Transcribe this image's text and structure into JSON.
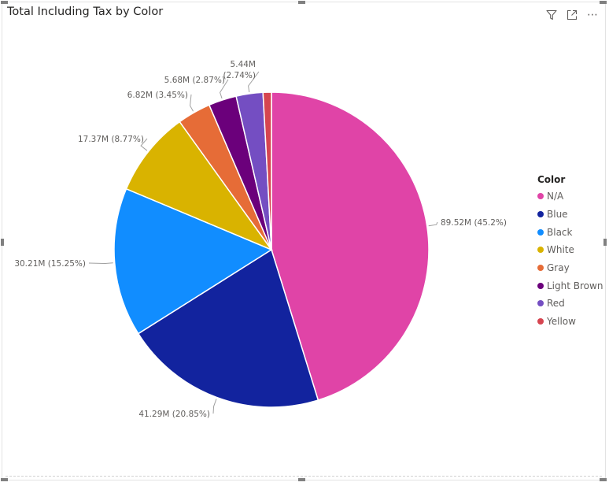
{
  "visual": {
    "title": "Total Including Tax by Color",
    "toolbar": {
      "filter_icon": "filter-icon",
      "focus_icon": "focus-mode-icon",
      "more_icon": "more-options-icon",
      "more_glyph": "⋯"
    }
  },
  "chart_data": {
    "type": "pie",
    "title": "Total Including Tax by Color",
    "legend_title": "Color",
    "legend_position": "right",
    "slices": [
      {
        "label": "N/A",
        "value": 89.52,
        "data_label": "89.52M (45.2%)",
        "color": "#E044A7"
      },
      {
        "label": "Blue",
        "value": 41.29,
        "data_label": "41.29M (20.85%)",
        "color": "#12239E"
      },
      {
        "label": "Black",
        "value": 30.21,
        "data_label": "30.21M (15.25%)",
        "color": "#118DFF"
      },
      {
        "label": "White",
        "value": 17.37,
        "data_label": "17.37M (8.77%)",
        "color": "#D9B300"
      },
      {
        "label": "Gray",
        "value": 6.82,
        "data_label": "6.82M (3.45%)",
        "color": "#E66C37"
      },
      {
        "label": "Light Brown",
        "value": 5.68,
        "data_label": "5.68M (2.87%)",
        "color": "#6B007B"
      },
      {
        "label": "Red",
        "value": 5.44,
        "data_label": "5.44M (2.74%)",
        "color": "#744EC2"
      },
      {
        "label": "Yellow",
        "value": 1.7,
        "data_label": "",
        "color": "#D64550"
      }
    ],
    "red_label_parts": [
      "5.44M",
      "(2.74%)"
    ]
  }
}
